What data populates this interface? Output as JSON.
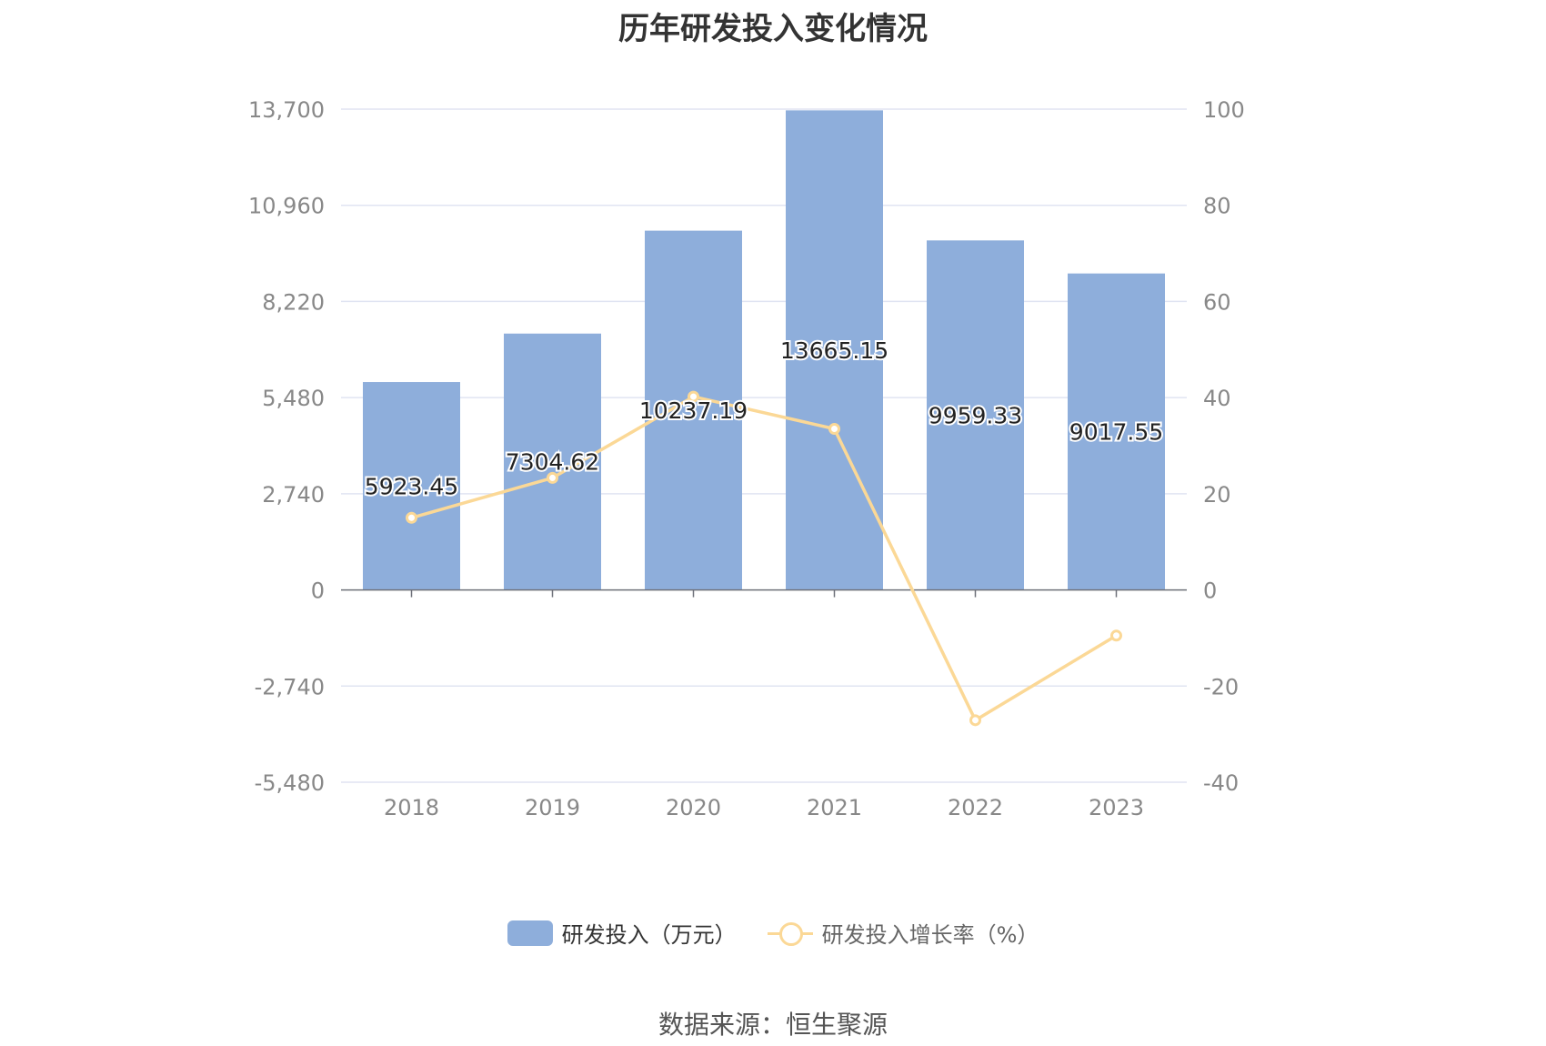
{
  "title": "历年研发投入变化情况",
  "legend": {
    "bar_label": "研发投入（万元）",
    "line_label": "研发投入增长率（%）"
  },
  "source": "数据来源：恒生聚源",
  "colors": {
    "bar": "#8eaedb",
    "line": "#fbd896",
    "grid": "#e0e4f2",
    "axis_text": "#888888"
  },
  "chart_data": {
    "type": "bar",
    "title": "历年研发投入变化情况",
    "categories": [
      "2018",
      "2019",
      "2020",
      "2021",
      "2022",
      "2023"
    ],
    "series": [
      {
        "name": "研发投入（万元）",
        "type": "bar",
        "axis": "left",
        "values": [
          5923.45,
          7304.62,
          10237.19,
          13665.15,
          9959.33,
          9017.55
        ]
      },
      {
        "name": "研发投入增长率（%）",
        "type": "line",
        "axis": "right",
        "values": [
          15.0,
          23.3,
          40.2,
          33.5,
          -27.1,
          -9.5
        ]
      }
    ],
    "y_left": {
      "ylim": [
        -5480,
        13700
      ],
      "ticks": [
        "13,700",
        "10,960",
        "8,220",
        "5,480",
        "2,740",
        "0",
        "-2,740",
        "-5,480"
      ],
      "tick_values": [
        13700,
        10960,
        8220,
        5480,
        2740,
        0,
        -2740,
        -5480
      ]
    },
    "y_right": {
      "ylim": [
        -40,
        100
      ],
      "ticks": [
        "100",
        "80",
        "60",
        "40",
        "20",
        "0",
        "-20",
        "-40"
      ],
      "tick_values": [
        100,
        80,
        60,
        40,
        20,
        0,
        -20,
        -40
      ]
    },
    "data_labels": [
      "5923.45",
      "7304.62",
      "10237.19",
      "13665.15",
      "9959.33",
      "9017.55"
    ],
    "grid": true,
    "legend_position": "bottom"
  }
}
